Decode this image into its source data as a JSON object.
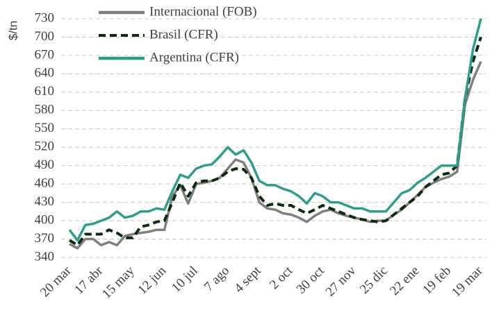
{
  "chart_data": {
    "type": "line",
    "ylabel": "$/tn",
    "categories": [
      "20 mar",
      null,
      null,
      null,
      "17 abr",
      null,
      null,
      null,
      "15 may",
      null,
      null,
      null,
      "12 jun",
      null,
      null,
      null,
      "10 jul",
      null,
      null,
      null,
      "7 ago",
      null,
      null,
      null,
      "4 sept",
      null,
      null,
      null,
      "2 oct",
      null,
      null,
      null,
      "30 oct",
      null,
      null,
      null,
      "27 nov",
      null,
      null,
      null,
      "25 dic",
      null,
      null,
      null,
      "22 ene",
      null,
      null,
      null,
      "19 feb",
      null,
      null,
      null,
      "19 mar"
    ],
    "series": [
      {
        "name": "Internacional (FOB)",
        "color": "#7f7f7f",
        "dashed": false,
        "values": [
          362,
          355,
          370,
          370,
          360,
          365,
          360,
          375,
          378,
          380,
          382,
          385,
          385,
          440,
          458,
          428,
          460,
          462,
          465,
          470,
          485,
          500,
          495,
          470,
          430,
          420,
          418,
          412,
          410,
          405,
          398,
          408,
          415,
          418,
          412,
          408,
          405,
          402,
          398,
          400,
          400,
          410,
          418,
          430,
          442,
          455,
          462,
          468,
          472,
          480,
          590,
          630,
          660
        ]
      },
      {
        "name": "Brasil (CFR)",
        "color": "#0d2b12",
        "dashed": true,
        "values": [
          368,
          360,
          378,
          378,
          378,
          385,
          380,
          372,
          372,
          390,
          393,
          398,
          400,
          430,
          462,
          440,
          462,
          465,
          465,
          470,
          480,
          485,
          484,
          470,
          440,
          425,
          428,
          425,
          425,
          418,
          412,
          418,
          425,
          420,
          415,
          410,
          405,
          402,
          400,
          398,
          400,
          410,
          420,
          430,
          440,
          455,
          465,
          475,
          478,
          490,
          600,
          660,
          700
        ]
      },
      {
        "name": "Argentina (CFR)",
        "color": "#2e9e8c",
        "dashed": false,
        "values": [
          385,
          368,
          393,
          395,
          400,
          405,
          415,
          405,
          408,
          415,
          415,
          420,
          418,
          448,
          475,
          470,
          485,
          490,
          492,
          505,
          520,
          508,
          515,
          495,
          465,
          458,
          458,
          452,
          448,
          440,
          428,
          445,
          440,
          430,
          430,
          425,
          420,
          420,
          415,
          415,
          415,
          430,
          445,
          450,
          462,
          470,
          480,
          490,
          490,
          490,
          600,
          680,
          730
        ]
      }
    ],
    "ylim": [
      340,
      730
    ],
    "yticks": [
      340,
      370,
      400,
      430,
      460,
      490,
      520,
      550,
      580,
      610,
      640,
      670,
      700,
      730
    ],
    "grid": true
  }
}
